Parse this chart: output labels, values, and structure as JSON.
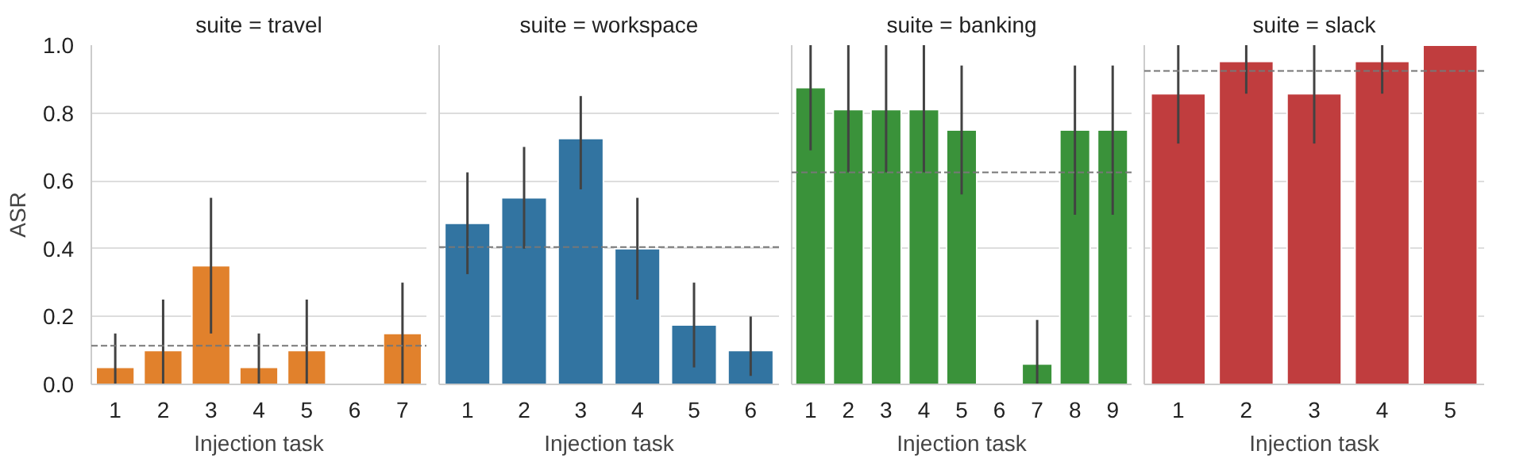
{
  "chart_data": [
    {
      "type": "bar",
      "title": "suite = travel",
      "xlabel": "Injection task",
      "ylabel": "ASR",
      "categories": [
        "1",
        "2",
        "3",
        "4",
        "5",
        "6",
        "7"
      ],
      "values": [
        0.05,
        0.1,
        0.35,
        0.05,
        0.1,
        null,
        0.15
      ],
      "color": "#e1812c",
      "errors": [
        [
          0,
          0.15
        ],
        [
          0,
          0.25
        ],
        [
          0.15,
          0.55
        ],
        [
          0,
          0.15
        ],
        [
          0,
          0.25
        ],
        null,
        [
          0,
          0.3
        ]
      ],
      "ylim": [
        0,
        1
      ],
      "yticks": [
        {
          "value": 0,
          "label": "0.0"
        },
        0.2,
        0.4,
        0.6,
        0.8,
        {
          "value": 1,
          "label": "1.0"
        }
      ],
      "grid": "y",
      "ref_lines": [
        {
          "axis": "y",
          "value": 0.114,
          "color": "#777777",
          "line_style": "dashed"
        }
      ]
    },
    {
      "type": "bar",
      "title": "suite = workspace",
      "xlabel": "Injection task",
      "categories": [
        "1",
        "2",
        "3",
        "4",
        "5",
        "6"
      ],
      "values": [
        0.475,
        0.55,
        0.725,
        0.4,
        0.175,
        0.1
      ],
      "color": "#3274a1",
      "errors": [
        [
          0.325,
          0.625
        ],
        [
          0.4,
          0.7
        ],
        [
          0.575,
          0.85
        ],
        [
          0.25,
          0.55
        ],
        [
          0.05,
          0.3
        ],
        [
          0.025,
          0.2
        ]
      ],
      "ylim": [
        0,
        1
      ],
      "yticks": [
        0.0,
        0.2,
        0.4,
        0.6,
        0.8,
        1.0
      ],
      "grid": "y",
      "tick_labels": "x",
      "ref_lines": [
        {
          "axis": "y",
          "value": 0.405,
          "color": "#777777",
          "line_style": "dashed"
        }
      ]
    },
    {
      "type": "bar",
      "title": "suite = banking",
      "xlabel": "Injection task",
      "categories": [
        "1",
        "2",
        "3",
        "4",
        "5",
        "6",
        "7",
        "8",
        "9"
      ],
      "values": [
        0.875,
        0.81,
        0.81,
        0.81,
        0.75,
        null,
        0.06,
        0.75,
        0.75
      ],
      "color": "#3a923a",
      "errors": [
        [
          0.69,
          1
        ],
        [
          0.625,
          1
        ],
        [
          0.625,
          1
        ],
        [
          0.625,
          1
        ],
        [
          0.56,
          0.94
        ],
        null,
        [
          0,
          0.19
        ],
        [
          0.5,
          0.94
        ],
        [
          0.5,
          0.94
        ]
      ],
      "ylim": [
        0,
        1
      ],
      "yticks": [
        0.0,
        0.2,
        0.4,
        0.6,
        0.8,
        1.0
      ],
      "grid": "y",
      "tick_labels": "x",
      "ref_lines": [
        {
          "axis": "y",
          "value": 0.625,
          "color": "#777777",
          "line_style": "dashed"
        }
      ]
    },
    {
      "type": "bar",
      "title": "suite = slack",
      "xlabel": "Injection task",
      "categories": [
        "1",
        "2",
        "3",
        "4",
        "5"
      ],
      "values": [
        0.857,
        0.952,
        0.857,
        0.952,
        1.0
      ],
      "color": "#c03d3e",
      "errors": [
        [
          0.71,
          1
        ],
        [
          0.857,
          1
        ],
        [
          0.71,
          1
        ],
        [
          0.857,
          1
        ],
        [
          1,
          1
        ]
      ],
      "ylim": [
        0,
        1
      ],
      "yticks": [
        0.0,
        0.2,
        0.4,
        0.6,
        0.8,
        1.0
      ],
      "grid": "y",
      "tick_labels": "x",
      "ref_lines": [
        {
          "axis": "y",
          "value": 0.924,
          "color": "#777777",
          "line_style": "dashed"
        }
      ]
    }
  ]
}
